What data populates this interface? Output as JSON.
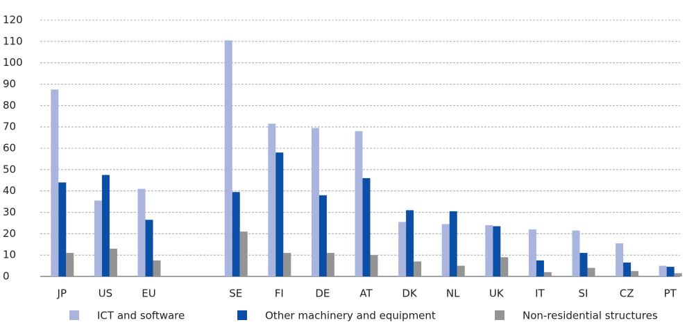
{
  "chart_data": {
    "type": "bar",
    "categories": [
      "JP",
      "US",
      "EU",
      null,
      "SE",
      "FI",
      "DE",
      "AT",
      "DK",
      "NL",
      "UK",
      "IT",
      "SI",
      "CZ",
      "PT"
    ],
    "series": [
      {
        "name": "ICT and software",
        "color": "#aab5df",
        "values": [
          87.5,
          35.5,
          41,
          null,
          110.5,
          71.5,
          69.5,
          68,
          25.5,
          24.5,
          24,
          22,
          21.5,
          15.5,
          5
        ]
      },
      {
        "name": "Other machinery and equipment",
        "color": "#0a4ea6",
        "values": [
          44,
          47.5,
          26.5,
          null,
          39.5,
          58,
          38,
          46,
          31,
          30.5,
          23.5,
          7.5,
          11,
          6.5,
          4.5
        ]
      },
      {
        "name": "Non-residential structures",
        "color": "#949494",
        "values": [
          11,
          13,
          7.5,
          null,
          21,
          11,
          11,
          10,
          7,
          5,
          9,
          2,
          4,
          2.5,
          1.5
        ]
      }
    ],
    "ylim": [
      0,
      120
    ],
    "yticks": [
      0,
      10,
      20,
      30,
      40,
      50,
      60,
      70,
      80,
      90,
      100,
      110,
      120
    ],
    "grid": true
  }
}
